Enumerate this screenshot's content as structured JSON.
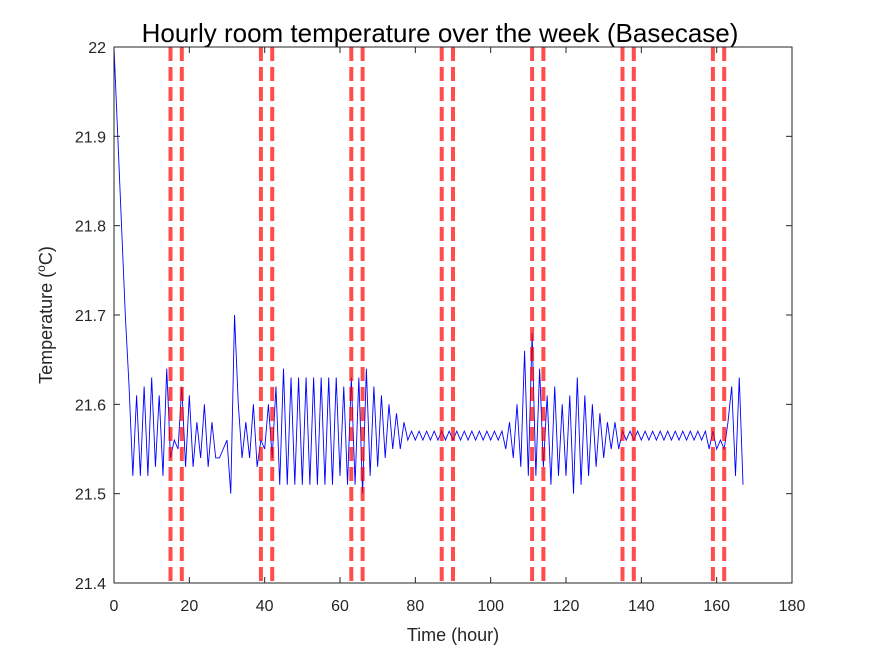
{
  "chart_data": {
    "type": "line",
    "title": "Hourly room temperature over the week (Basecase)",
    "xlabel": "Time (hour)",
    "ylabel": [
      "Temperature (",
      "o",
      "C)"
    ],
    "x": [
      0,
      1,
      2,
      3,
      4,
      5,
      6,
      7,
      8,
      9,
      10,
      11,
      12,
      13,
      14,
      15,
      16,
      17,
      18,
      19,
      20,
      21,
      22,
      23,
      24,
      25,
      26,
      27,
      28,
      29,
      30,
      31,
      32,
      33,
      34,
      35,
      36,
      37,
      38,
      39,
      40,
      41,
      42,
      43,
      44,
      45,
      46,
      47,
      48,
      49,
      50,
      51,
      52,
      53,
      54,
      55,
      56,
      57,
      58,
      59,
      60,
      61,
      62,
      63,
      64,
      65,
      66,
      67,
      68,
      69,
      70,
      71,
      72,
      73,
      74,
      75,
      76,
      77,
      78,
      79,
      80,
      81,
      82,
      83,
      84,
      85,
      86,
      87,
      88,
      89,
      90,
      91,
      92,
      93,
      94,
      95,
      96,
      97,
      98,
      99,
      100,
      101,
      102,
      103,
      104,
      105,
      106,
      107,
      108,
      109,
      110,
      111,
      112,
      113,
      114,
      115,
      116,
      117,
      118,
      119,
      120,
      121,
      122,
      123,
      124,
      125,
      126,
      127,
      128,
      129,
      130,
      131,
      132,
      133,
      134,
      135,
      136,
      137,
      138,
      139,
      140,
      141,
      142,
      143,
      144,
      145,
      146,
      147,
      148,
      149,
      150,
      151,
      152,
      153,
      154,
      155,
      156,
      157,
      158,
      159,
      160,
      161,
      162,
      163,
      164,
      165,
      166,
      167
    ],
    "values": [
      22,
      21.9,
      21.8,
      21.7,
      21.62,
      21.52,
      21.61,
      21.52,
      21.62,
      21.52,
      21.63,
      21.53,
      21.61,
      21.52,
      21.64,
      21.54,
      21.56,
      21.55,
      21.62,
      21.53,
      21.61,
      21.53,
      21.58,
      21.54,
      21.6,
      21.53,
      21.58,
      21.54,
      21.54,
      21.55,
      21.56,
      21.5,
      21.7,
      21.6,
      21.54,
      21.58,
      21.54,
      21.6,
      21.53,
      21.56,
      21.55,
      21.6,
      21.54,
      21.62,
      21.51,
      21.64,
      21.51,
      21.63,
      21.51,
      21.63,
      21.51,
      21.63,
      21.51,
      21.63,
      21.51,
      21.63,
      21.51,
      21.63,
      21.51,
      21.63,
      21.52,
      21.62,
      21.51,
      21.63,
      21.51,
      21.63,
      21.5,
      21.64,
      21.52,
      21.62,
      21.53,
      21.61,
      21.54,
      21.6,
      21.55,
      21.59,
      21.55,
      21.58,
      21.56,
      21.57,
      21.56,
      21.57,
      21.56,
      21.57,
      21.56,
      21.57,
      21.56,
      21.57,
      21.56,
      21.57,
      21.56,
      21.57,
      21.56,
      21.57,
      21.56,
      21.57,
      21.56,
      21.57,
      21.56,
      21.57,
      21.56,
      21.57,
      21.56,
      21.57,
      21.55,
      21.58,
      21.54,
      21.6,
      21.53,
      21.66,
      21.52,
      21.68,
      21.52,
      21.64,
      21.53,
      21.61,
      21.51,
      21.62,
      21.52,
      21.6,
      21.52,
      21.61,
      21.5,
      21.63,
      21.51,
      21.61,
      21.52,
      21.6,
      21.53,
      21.59,
      21.54,
      21.58,
      21.55,
      21.58,
      21.55,
      21.57,
      21.56,
      21.57,
      21.56,
      21.57,
      21.56,
      21.57,
      21.56,
      21.57,
      21.56,
      21.57,
      21.56,
      21.57,
      21.56,
      21.57,
      21.56,
      21.57,
      21.56,
      21.57,
      21.56,
      21.57,
      21.56,
      21.57,
      21.55,
      21.57,
      21.55,
      21.56,
      21.55,
      21.58,
      21.62,
      21.52,
      21.63,
      21.51
    ],
    "color": "#0000ff",
    "vlines": [
      15,
      18,
      39,
      42,
      63,
      66,
      87,
      90,
      111,
      114,
      135,
      138,
      159,
      162
    ],
    "vline_color": "#ff0000",
    "xlim": [
      0,
      180
    ],
    "xticks": [
      0,
      20,
      40,
      60,
      80,
      100,
      120,
      140,
      160,
      180
    ],
    "ylim": [
      21.4,
      22
    ],
    "yticks": [
      21.4,
      21.5,
      21.6,
      21.7,
      21.8,
      21.9,
      22
    ]
  }
}
